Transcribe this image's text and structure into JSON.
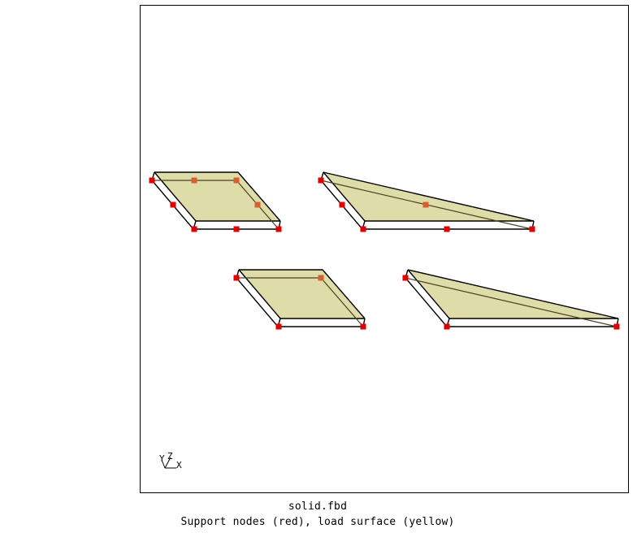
{
  "viewport": {
    "file_name": "solid.fbd",
    "description": "Support nodes (red), load surface (yellow)"
  },
  "axes_triad": {
    "labels": [
      "Y",
      "Z",
      "X"
    ]
  },
  "colors": {
    "load_surface": "#dedca8",
    "support_node": "#e00000",
    "shared_node": "#d86030",
    "edge": "#000000",
    "inner_edge": "#4a4020"
  }
}
